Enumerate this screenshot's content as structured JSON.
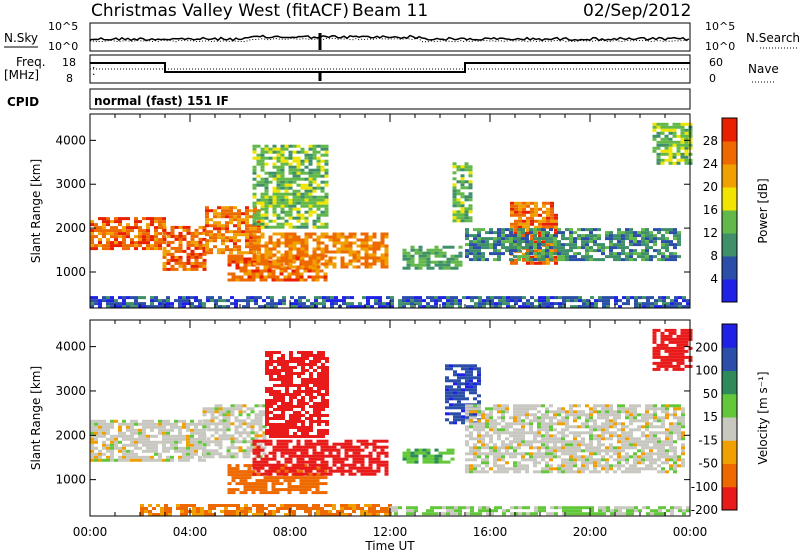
{
  "header": {
    "station": "Christmas Valley West (fitACF)",
    "beam": "Beam 11",
    "date": "02/Sep/2012"
  },
  "summary_panels": {
    "nsky_label": "N.Sky",
    "nsearch_label": "N.Search",
    "freq_label_line1": "Freq.",
    "freq_label_line2": "[MHz]",
    "nave_label": "Nave",
    "cpid_label": "CPID",
    "cpid_value": "normal (fast) 151 IF",
    "noise_ticks_left": [
      "10^5",
      "10^0"
    ],
    "noise_ticks_right": [
      "10^5",
      "10^0"
    ],
    "freq_ticks": [
      "18",
      "8"
    ],
    "nave_ticks": [
      "60",
      "0"
    ]
  },
  "colors": {
    "power_scale": [
      "#1f22e6",
      "#2b4fa8",
      "#3f8f6a",
      "#62b84a",
      "#f0e400",
      "#f0a000",
      "#ee6a00",
      "#e82000"
    ],
    "velocity_scale": [
      "#e81a1a",
      "#ee6a00",
      "#f0a000",
      "#c8c8c0",
      "#62c83a",
      "#2f8a5a",
      "#2b4fa8",
      "#1f22e6"
    ],
    "ground_scatter": "#c8c8c0"
  },
  "chart_data": [
    {
      "type": "heatmap",
      "title": "",
      "quantity": "Power",
      "xlabel": "Time UT",
      "ylabel": "Slant Range [km]",
      "xlim_hours": [
        0,
        24
      ],
      "ylim_km": [
        180,
        4600
      ],
      "x_ticks": [
        "00:00",
        "04:00",
        "08:00",
        "12:00",
        "16:00",
        "20:00",
        "00:00"
      ],
      "y_ticks": [
        1000,
        2000,
        3000,
        4000
      ],
      "colorbar_label": "Power [dB]",
      "colorbar_ticks": [
        4,
        8,
        12,
        16,
        20,
        24,
        28
      ],
      "echo_regions": [
        {
          "t0": 0.0,
          "t1": 2.9,
          "r0": 1550,
          "r1": 2250,
          "dB": 26
        },
        {
          "t0": 2.9,
          "t1": 4.6,
          "r0": 1050,
          "r1": 2050,
          "dB": 27
        },
        {
          "t0": 4.6,
          "t1": 6.8,
          "r0": 1450,
          "r1": 2500,
          "dB": 25
        },
        {
          "t0": 5.5,
          "t1": 9.5,
          "r0": 800,
          "r1": 1400,
          "dB": 26
        },
        {
          "t0": 6.5,
          "t1": 11.8,
          "r0": 1100,
          "r1": 1900,
          "dB": 24
        },
        {
          "t0": 6.5,
          "t1": 9.5,
          "r0": 2000,
          "r1": 3900,
          "dB": 14
        },
        {
          "t0": 12.5,
          "t1": 14.8,
          "r0": 1100,
          "r1": 1600,
          "dB": 12
        },
        {
          "t0": 14.5,
          "t1": 15.2,
          "r0": 2200,
          "r1": 3500,
          "dB": 14
        },
        {
          "t0": 16.8,
          "t1": 18.6,
          "r0": 1200,
          "r1": 2600,
          "dB": 26
        },
        {
          "t0": 15.0,
          "t1": 23.5,
          "r0": 1300,
          "r1": 2000,
          "dB": 10
        },
        {
          "t0": 22.5,
          "t1": 24.0,
          "r0": 3500,
          "r1": 4400,
          "dB": 14
        },
        {
          "t0": 0.0,
          "t1": 24.0,
          "r0": 200,
          "r1": 450,
          "dB": 6
        }
      ]
    },
    {
      "type": "heatmap",
      "title": "",
      "quantity": "Velocity",
      "xlabel": "Time UT",
      "ylabel": "Slant Range [km]",
      "xlim_hours": [
        0,
        24
      ],
      "ylim_km": [
        180,
        4600
      ],
      "x_ticks": [
        "00:00",
        "04:00",
        "08:00",
        "12:00",
        "16:00",
        "20:00",
        "00:00"
      ],
      "y_ticks": [
        1000,
        2000,
        3000,
        4000
      ],
      "colorbar_label": "Velocity [m s⁻¹]",
      "colorbar_ticks": [
        200,
        100,
        50,
        15,
        -15,
        -50,
        -100,
        -200
      ],
      "echo_regions": [
        {
          "t0": 0.0,
          "t1": 4.5,
          "r0": 1450,
          "r1": 2350,
          "v": 0
        },
        {
          "t0": 4.5,
          "t1": 7.0,
          "r0": 1500,
          "r1": 2700,
          "v": 0
        },
        {
          "t0": 5.5,
          "t1": 9.5,
          "r0": 700,
          "r1": 1350,
          "v": -80
        },
        {
          "t0": 6.5,
          "t1": 11.8,
          "r0": 1100,
          "r1": 1900,
          "v": -180
        },
        {
          "t0": 7.0,
          "t1": 9.5,
          "r0": 2000,
          "r1": 3900,
          "v": -120
        },
        {
          "t0": 12.5,
          "t1": 14.5,
          "r0": 1400,
          "r1": 1700,
          "v": 40
        },
        {
          "t0": 14.2,
          "t1": 15.5,
          "r0": 2300,
          "r1": 3600,
          "v": 190
        },
        {
          "t0": 15.0,
          "t1": 23.8,
          "r0": 1200,
          "r1": 2700,
          "v": 0
        },
        {
          "t0": 22.5,
          "t1": 24.0,
          "r0": 3500,
          "r1": 4400,
          "v": -200
        },
        {
          "t0": 2.0,
          "t1": 12.0,
          "r0": 200,
          "r1": 450,
          "v": -60
        },
        {
          "t0": 12.0,
          "t1": 24.0,
          "r0": 200,
          "r1": 400,
          "v": 20
        }
      ]
    }
  ]
}
